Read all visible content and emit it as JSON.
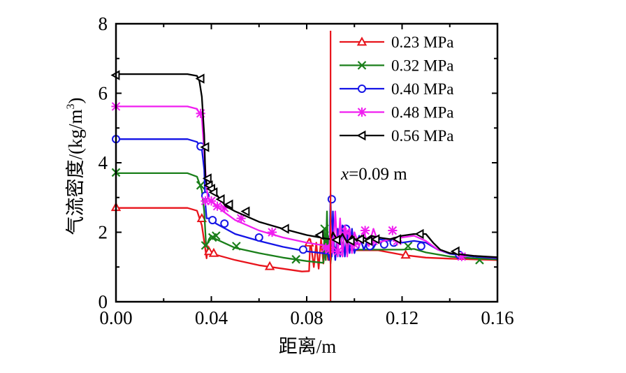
{
  "chart_data": {
    "type": "line",
    "title": "",
    "xlabel": "距离/m",
    "ylabel_main": "气流密度/(kg/m",
    "ylabel_sup": "3",
    "ylabel_tail": ")",
    "xlim": [
      0,
      0.16
    ],
    "ylim": [
      0,
      8
    ],
    "xticks": [
      "0.00",
      "0.04",
      "0.08",
      "0.12",
      "0.16"
    ],
    "xtick_values": [
      0,
      0.04,
      0.08,
      0.12,
      0.16
    ],
    "xminor": [
      0.02,
      0.06,
      0.1,
      0.14
    ],
    "yticks": [
      "0",
      "2",
      "4",
      "6",
      "8"
    ],
    "ytick_values": [
      0,
      2,
      4,
      6,
      8
    ],
    "yminor": [
      1,
      3,
      5,
      7
    ],
    "grid": false,
    "legend_position": "top-right",
    "vline": {
      "x": 0.09,
      "color": "#e8141c",
      "label_var": "x",
      "label_rest": "=0.09 m"
    },
    "series": [
      {
        "name": "0.23 MPa",
        "color": "#e8141c",
        "marker": "triangle-up",
        "x": [
          0,
          0.03,
          0.034,
          0.036,
          0.0375,
          0.038,
          0.0385,
          0.039,
          0.04,
          0.042,
          0.05,
          0.06,
          0.07,
          0.078,
          0.081,
          0.0815,
          0.083,
          0.084,
          0.085,
          0.086,
          0.087,
          0.088,
          0.089,
          0.09,
          0.091,
          0.093,
          0.095,
          0.097,
          0.1,
          0.11,
          0.12,
          0.13,
          0.14,
          0.15,
          0.16
        ],
        "y": [
          2.7,
          2.7,
          2.62,
          2.2,
          1.5,
          1.25,
          1.6,
          1.45,
          1.4,
          1.35,
          1.2,
          1.05,
          0.95,
          0.87,
          0.88,
          1.8,
          1.0,
          1.7,
          0.95,
          1.8,
          1.1,
          1.7,
          1.2,
          1.5,
          1.6,
          1.5,
          1.45,
          1.5,
          1.48,
          1.48,
          1.35,
          1.27,
          1.24,
          1.22,
          1.2
        ],
        "marker_x": [
          0,
          0.036,
          0.039,
          0.041,
          0.0645,
          0.081,
          0.1215
        ],
        "marker_y": [
          2.72,
          2.4,
          1.45,
          1.4,
          1.02,
          1.7,
          1.35
        ]
      },
      {
        "name": "0.32 MPa",
        "color": "#1a7f1a",
        "marker": "x",
        "x": [
          0,
          0.03,
          0.034,
          0.036,
          0.037,
          0.0378,
          0.0385,
          0.039,
          0.04,
          0.042,
          0.05,
          0.06,
          0.07,
          0.08,
          0.087,
          0.0875,
          0.088,
          0.0885,
          0.089,
          0.0895,
          0.09,
          0.091,
          0.092,
          0.094,
          0.096,
          0.098,
          0.1,
          0.105,
          0.11,
          0.115,
          0.12,
          0.125,
          0.13,
          0.14,
          0.15,
          0.16
        ],
        "y": [
          3.7,
          3.7,
          3.6,
          3.2,
          2.6,
          1.6,
          1.7,
          1.8,
          1.9,
          1.8,
          1.55,
          1.4,
          1.27,
          1.17,
          1.12,
          2.1,
          1.2,
          2.6,
          1.3,
          1.9,
          1.1,
          1.8,
          1.3,
          1.9,
          1.4,
          1.8,
          1.5,
          1.5,
          1.5,
          1.5,
          1.5,
          1.52,
          1.42,
          1.3,
          1.25,
          1.22
        ],
        "marker_x": [
          0,
          0.0355,
          0.0375,
          0.0405,
          0.042,
          0.0505,
          0.0755,
          0.0875,
          0.1225,
          0.1525
        ],
        "marker_y": [
          3.72,
          3.35,
          1.62,
          1.85,
          1.9,
          1.6,
          1.22,
          2.1,
          1.6,
          1.2
        ]
      },
      {
        "name": "0.40 MPa",
        "color": "#1414e6",
        "marker": "circle",
        "x": [
          0,
          0.03,
          0.034,
          0.036,
          0.037,
          0.0375,
          0.038,
          0.039,
          0.04,
          0.042,
          0.05,
          0.06,
          0.07,
          0.08,
          0.089,
          0.0895,
          0.09,
          0.0905,
          0.091,
          0.0915,
          0.092,
          0.093,
          0.094,
          0.095,
          0.096,
          0.097,
          0.098,
          0.099,
          0.1,
          0.102,
          0.104,
          0.106,
          0.108,
          0.11,
          0.115,
          0.12,
          0.125,
          0.13,
          0.135,
          0.14,
          0.15,
          0.16
        ],
        "y": [
          4.68,
          4.68,
          4.6,
          4.4,
          3.8,
          2.8,
          2.4,
          2.4,
          2.35,
          2.25,
          1.95,
          1.75,
          1.58,
          1.45,
          1.38,
          1.2,
          3.1,
          1.3,
          2.6,
          1.6,
          1.2,
          2.1,
          1.3,
          2.2,
          1.3,
          2.0,
          1.4,
          2.1,
          1.4,
          1.9,
          1.5,
          1.85,
          1.55,
          1.8,
          1.75,
          1.7,
          1.75,
          1.7,
          1.5,
          1.38,
          1.3,
          1.25
        ],
        "marker_x": [
          0,
          0.0355,
          0.0375,
          0.0405,
          0.0455,
          0.06,
          0.0785,
          0.0905,
          0.094,
          0.0965,
          0.1005,
          0.1065,
          0.1125,
          0.1165,
          0.128,
          0.144
        ],
        "marker_y": [
          4.68,
          4.47,
          3.05,
          2.35,
          2.25,
          1.85,
          1.5,
          2.95,
          1.55,
          2.1,
          1.6,
          1.6,
          1.65,
          1.7,
          1.6,
          1.35
        ]
      },
      {
        "name": "0.48 MPa",
        "color": "#f01ef0",
        "marker": "asterisk",
        "x": [
          0,
          0.03,
          0.034,
          0.036,
          0.037,
          0.038,
          0.0385,
          0.039,
          0.04,
          0.042,
          0.05,
          0.06,
          0.07,
          0.08,
          0.089,
          0.0895,
          0.09,
          0.091,
          0.092,
          0.093,
          0.094,
          0.095,
          0.096,
          0.097,
          0.098,
          0.099,
          0.1,
          0.102,
          0.104,
          0.106,
          0.108,
          0.11,
          0.115,
          0.12,
          0.125,
          0.13,
          0.135,
          0.14,
          0.15,
          0.16
        ],
        "y": [
          5.62,
          5.62,
          5.55,
          5.3,
          4.3,
          3.3,
          3.0,
          2.95,
          2.9,
          2.75,
          2.35,
          2.05,
          1.85,
          1.7,
          1.6,
          1.5,
          2.3,
          1.4,
          2.6,
          1.3,
          2.4,
          1.3,
          2.2,
          1.3,
          2.1,
          1.4,
          2.0,
          1.6,
          2.0,
          1.6,
          2.1,
          1.7,
          1.8,
          1.85,
          1.9,
          1.75,
          1.5,
          1.4,
          1.32,
          1.27
        ],
        "marker_x": [
          0,
          0.0355,
          0.0375,
          0.04,
          0.0425,
          0.0455,
          0.0525,
          0.0655,
          0.088,
          0.0895,
          0.093,
          0.0965,
          0.1,
          0.1045,
          0.108,
          0.116,
          0.118,
          0.145
        ],
        "marker_y": [
          5.62,
          5.42,
          2.9,
          2.9,
          2.75,
          2.7,
          2.4,
          2.0,
          1.55,
          1.5,
          1.45,
          2.0,
          1.65,
          2.05,
          1.75,
          2.05,
          1.75,
          1.3
        ]
      },
      {
        "name": "0.56 MPa",
        "color": "#000000",
        "marker": "triangle-left",
        "x": [
          0,
          0.03,
          0.034,
          0.035,
          0.036,
          0.037,
          0.0375,
          0.038,
          0.0385,
          0.039,
          0.04,
          0.042,
          0.046,
          0.05,
          0.06,
          0.07,
          0.08,
          0.088,
          0.09,
          0.091,
          0.093,
          0.095,
          0.097,
          0.099,
          0.101,
          0.103,
          0.105,
          0.107,
          0.11,
          0.115,
          0.12,
          0.125,
          0.13,
          0.133,
          0.136,
          0.14,
          0.15,
          0.16
        ],
        "y": [
          6.55,
          6.55,
          6.5,
          6.35,
          5.9,
          4.8,
          3.6,
          3.4,
          3.35,
          3.3,
          3.25,
          3.1,
          2.75,
          2.6,
          2.3,
          2.1,
          1.92,
          1.82,
          1.8,
          2.0,
          1.75,
          1.95,
          1.7,
          1.9,
          1.75,
          1.9,
          1.8,
          1.9,
          1.85,
          1.8,
          1.9,
          1.95,
          1.95,
          1.7,
          1.5,
          1.4,
          1.32,
          1.28
        ],
        "marker_x": [
          0,
          0.0355,
          0.0375,
          0.0385,
          0.039,
          0.04,
          0.041,
          0.044,
          0.0475,
          0.0545,
          0.071,
          0.0855,
          0.0925,
          0.0985,
          0.1025,
          0.106,
          0.109,
          0.118,
          0.1275,
          0.1425
        ],
        "marker_y": [
          6.52,
          6.42,
          4.45,
          3.55,
          3.35,
          3.25,
          3.15,
          2.95,
          2.8,
          2.6,
          2.1,
          1.92,
          1.78,
          1.75,
          1.8,
          1.75,
          1.8,
          1.8,
          1.95,
          1.45
        ]
      }
    ]
  }
}
